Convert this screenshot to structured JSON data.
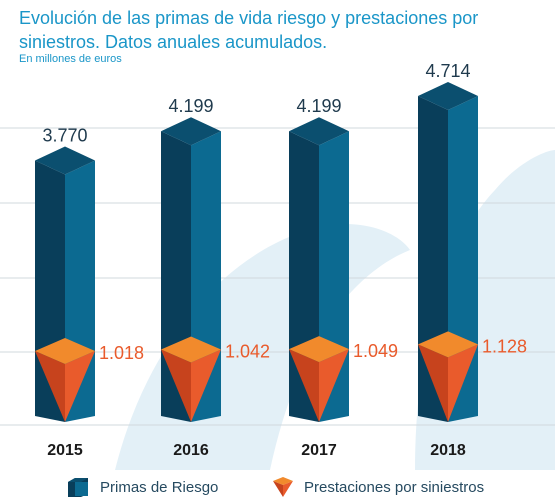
{
  "title": "Evolución de las primas de vida riesgo y prestaciones por siniestros. Datos anuales acumulados.",
  "subtitle": "En millones de euros",
  "colors": {
    "accent": "#1a96c8",
    "primas_front": "#0c6a91",
    "primas_side": "#093e5a",
    "primas_top": "#0b4f6f",
    "prest_front": "#e95b2c",
    "prest_side": "#c7431d",
    "prest_top": "#f18a2c",
    "watermark": "#e3f0f7"
  },
  "chart_data": {
    "type": "bar",
    "categories": [
      "2015",
      "2016",
      "2017",
      "2018"
    ],
    "series": [
      {
        "name": "Primas de Riesgo",
        "values": [
          3770,
          4199,
          4199,
          4714
        ],
        "labels": [
          "3.770",
          "4.199",
          "4.199",
          "4.714"
        ]
      },
      {
        "name": "Prestaciones por siniestros",
        "values": [
          1018,
          1042,
          1049,
          1128
        ],
        "labels": [
          "1.018",
          "1.042",
          "1.049",
          "1.128"
        ]
      }
    ],
    "grid": true
  },
  "legend": {
    "primas": "Primas de Riesgo",
    "prestaciones": "Prestaciones por siniestros"
  }
}
